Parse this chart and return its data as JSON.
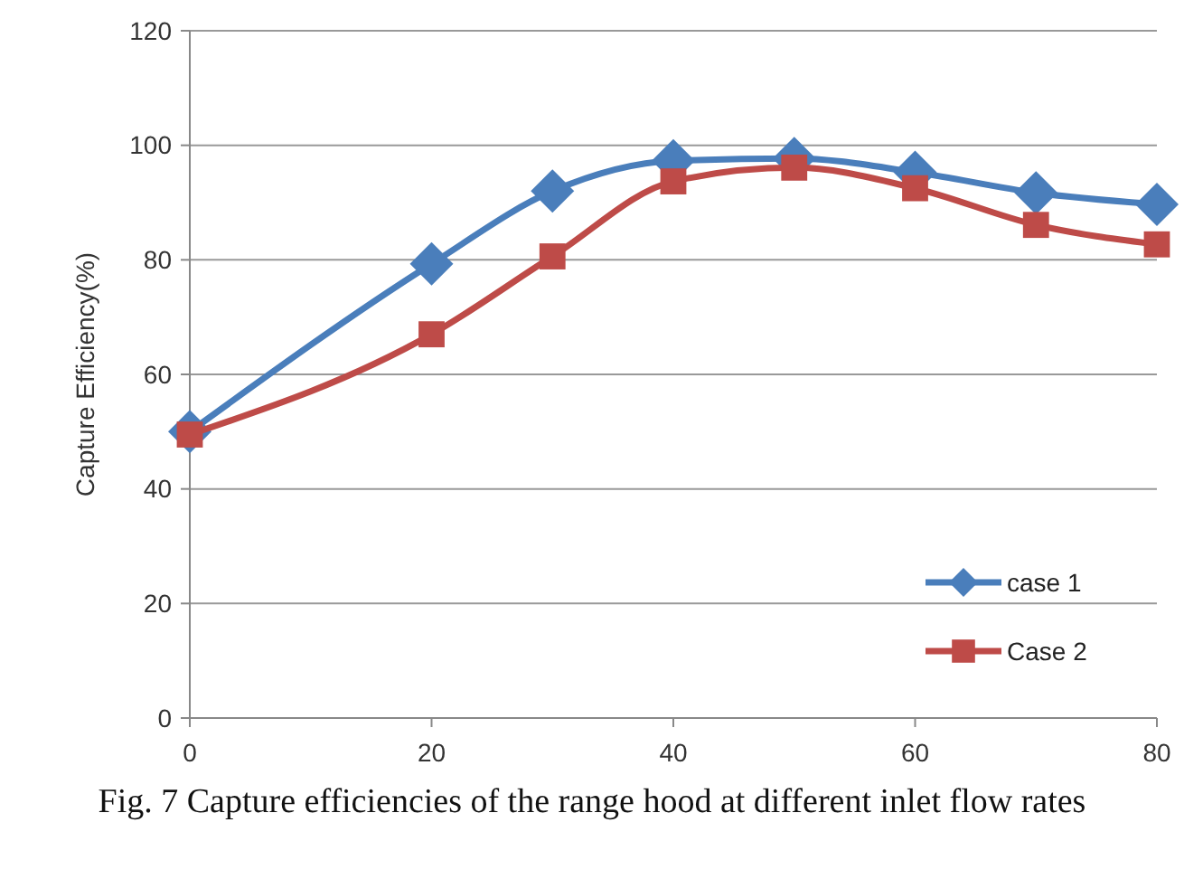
{
  "chart_data": {
    "type": "line",
    "ylabel": "Capture Efficiency(%)",
    "x": [
      0,
      20,
      30,
      40,
      50,
      60,
      70,
      80
    ],
    "series": [
      {
        "name": "case 1",
        "color": "#4a7ebb",
        "marker": "diamond",
        "values": [
          50,
          79.3,
          92,
          97.3,
          97.7,
          95.3,
          91.7,
          89.7
        ]
      },
      {
        "name": "Case 2",
        "color": "#be4b48",
        "marker": "square",
        "values": [
          49.5,
          67,
          80.6,
          93.7,
          96.1,
          92.5,
          86.1,
          82.7
        ]
      }
    ],
    "xlim": [
      0,
      80
    ],
    "xticks": [
      0,
      20,
      40,
      60,
      80
    ],
    "ylim": [
      0,
      120
    ],
    "yticks": [
      0,
      20,
      40,
      60,
      80,
      100,
      120
    ],
    "grid": "y",
    "legend": "bottom right",
    "annotations": [
      "Fig. 7  Capture efficiencies of the range hood at different inlet flow rates"
    ]
  }
}
